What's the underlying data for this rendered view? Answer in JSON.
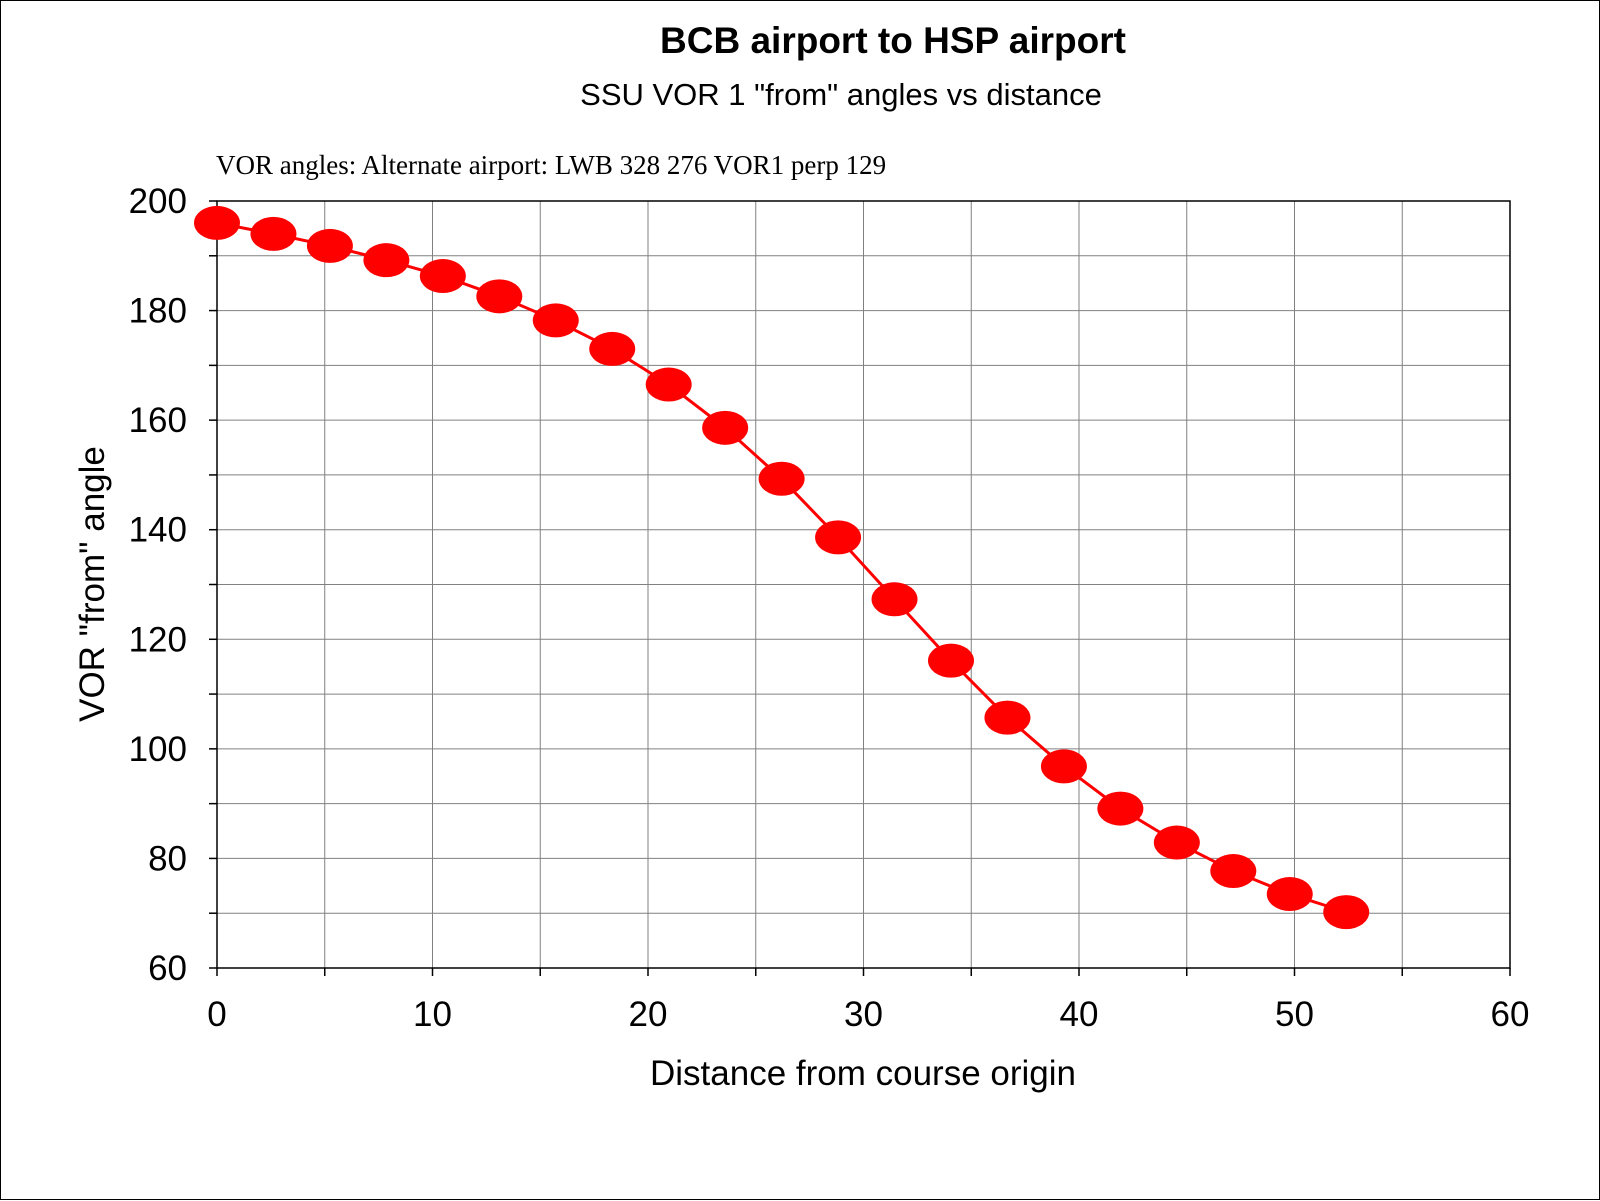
{
  "chart_data": {
    "type": "line",
    "title": "BCB airport  to HSP airport",
    "subtitle": "SSU VOR 1  \"from\" angles vs distance",
    "annotation": "VOR angles: Alternate airport: LWB 328 276   VOR1 perp 129",
    "xlabel": "Distance from course origin",
    "ylabel": "VOR \"from\" angle",
    "xlim": [
      0,
      60
    ],
    "ylim": [
      60,
      200
    ],
    "x_ticks": [
      0,
      10,
      20,
      30,
      40,
      50,
      60
    ],
    "y_ticks": [
      60,
      80,
      100,
      120,
      140,
      160,
      180,
      200
    ],
    "x_grid_step": 5,
    "y_grid_step": 10,
    "grid": true,
    "legend": "none",
    "series_color": "#ff0000",
    "series": [
      {
        "x": [
          0,
          2.62,
          5.24,
          7.86,
          10.48,
          13.1,
          15.72,
          18.34,
          20.96,
          23.58,
          26.2,
          28.82,
          31.44,
          34.06,
          36.68,
          39.3,
          41.92,
          44.54,
          47.16,
          49.78,
          52.4
        ],
        "y": [
          196,
          194,
          191.8,
          189.2,
          186.3,
          182.6,
          178.2,
          173,
          166.5,
          158.6,
          149.3,
          138.6,
          127.3,
          116.1,
          105.7,
          96.8,
          89.1,
          82.9,
          77.7,
          73.5,
          70.2
        ]
      }
    ]
  }
}
